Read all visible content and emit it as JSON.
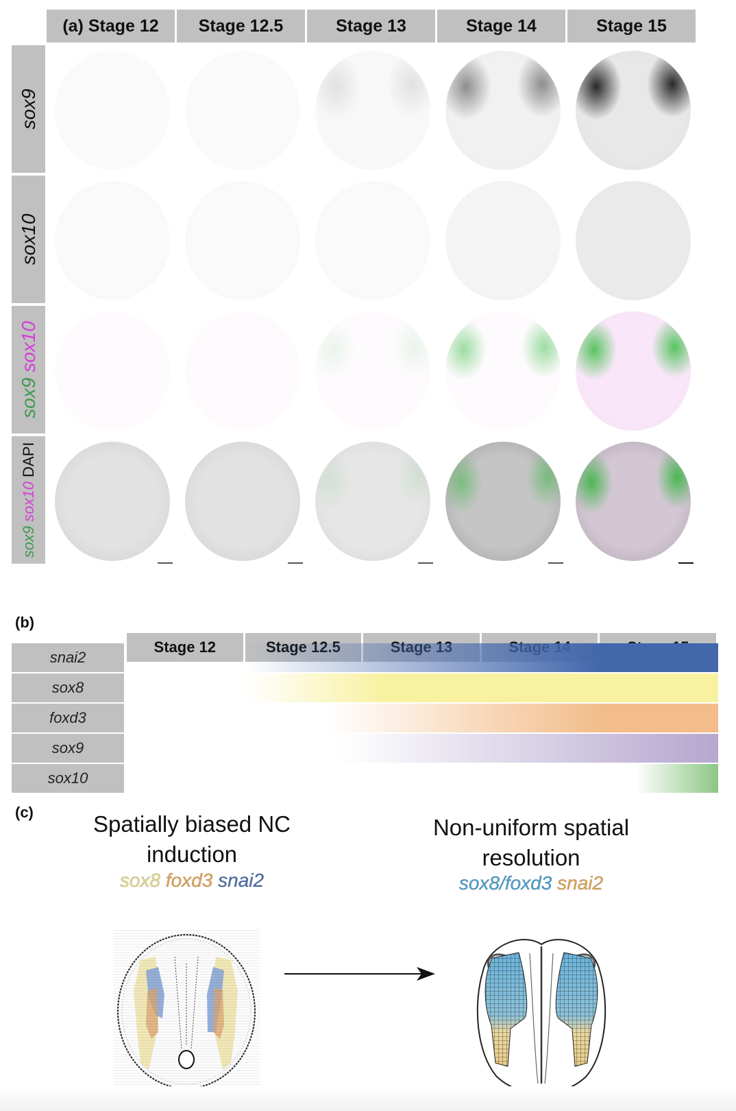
{
  "figure": {
    "panel_a": {
      "label": "(a)",
      "stages": [
        "Stage 12",
        "Stage 12.5",
        "Stage 13",
        "Stage 14",
        "Stage 15"
      ],
      "rows": [
        {
          "label_parts": [
            {
              "text": "sox9",
              "color": "#111111"
            }
          ],
          "channel": "sox9"
        },
        {
          "label_parts": [
            {
              "text": "sox10",
              "color": "#111111"
            }
          ],
          "channel": "sox10"
        },
        {
          "label_parts": [
            {
              "text": "sox9",
              "color": "#3f9a4f"
            },
            {
              "text": " sox10",
              "color": "#d43fd6"
            }
          ],
          "channel": "sox9 + sox10 merge"
        },
        {
          "label_parts": [
            {
              "text": "sox9",
              "color": "#3f9a4f"
            },
            {
              "text": " sox10",
              "color": "#d43fd6"
            },
            {
              "text": " DAPI",
              "color": "#111111"
            }
          ],
          "channel": "sox9 + sox10 + DAPI merge"
        }
      ],
      "signal_intensity": {
        "sox9": [
          0.0,
          0.0,
          0.1,
          0.45,
          0.9
        ],
        "sox10": [
          0.0,
          0.0,
          0.0,
          0.05,
          0.15
        ],
        "merge_green": [
          0.0,
          0.0,
          0.1,
          0.5,
          0.85
        ],
        "dapi": [
          0.35,
          0.35,
          0.3,
          0.7,
          0.8
        ]
      },
      "scale_bars_shown": true
    },
    "panel_b": {
      "label": "(b)",
      "stages": [
        "Stage 12",
        "Stage 12.5",
        "Stage 13",
        "Stage 14",
        "Stage 15"
      ],
      "genes": [
        {
          "name": "snai2",
          "color": "#4267ab",
          "onset_stage_index": 1.0,
          "full_stage_index": 4.0
        },
        {
          "name": "sox8",
          "color": "#f8f1a0",
          "onset_stage_index": 1.0,
          "full_stage_index": 2.2
        },
        {
          "name": "foxd3",
          "color": "#f2bd8a",
          "onset_stage_index": 1.7,
          "full_stage_index": 4.0
        },
        {
          "name": "sox9",
          "color": "#b5a7cf",
          "onset_stage_index": 1.8,
          "full_stage_index": 5.0
        },
        {
          "name": "sox10",
          "color": "#8cc684",
          "onset_stage_index": 4.3,
          "full_stage_index": 5.0
        }
      ]
    },
    "panel_c": {
      "label": "(c)",
      "left": {
        "title_line1": "Spatially biased NC",
        "title_line2": "induction",
        "genes": [
          {
            "text": "sox8",
            "color": "#e6dd8c"
          },
          {
            "text": " foxd3",
            "color": "#e3a457"
          },
          {
            "text": " snai2",
            "color": "#4a6ea8"
          }
        ]
      },
      "right": {
        "title_line1": "Non-uniform spatial",
        "title_line2": "resolution",
        "genes": [
          {
            "text": "sox8/foxd3",
            "color": "#4a9fd2"
          },
          {
            "text": " snai2",
            "color": "#e0a655"
          }
        ]
      },
      "arrow": "right-arrow"
    }
  }
}
